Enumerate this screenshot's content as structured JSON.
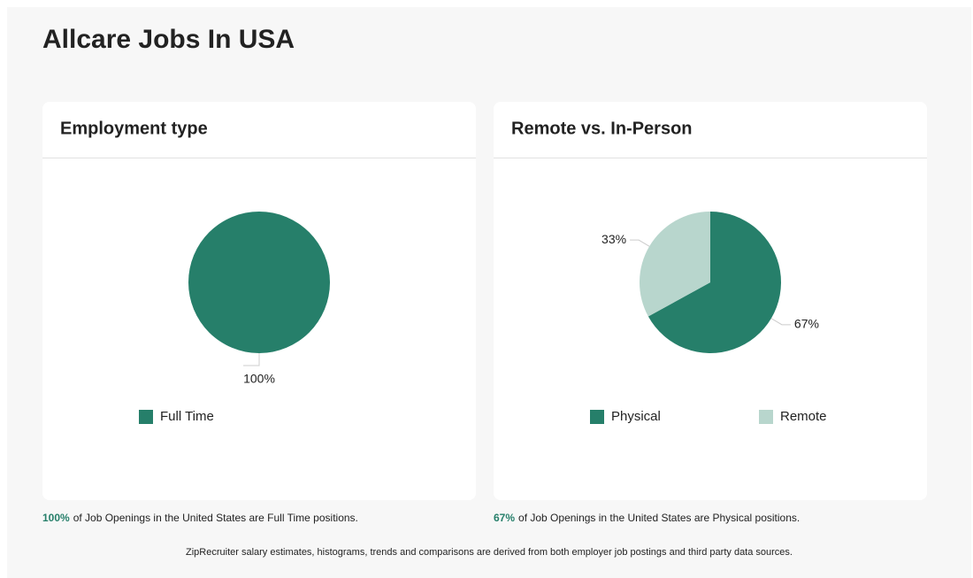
{
  "title": "Allcare Jobs In USA",
  "chart_data": [
    {
      "type": "pie",
      "title": "Employment type",
      "categories": [
        "Full Time"
      ],
      "values": [
        100
      ],
      "value_labels": [
        "100%"
      ],
      "colors": [
        "#267f6a"
      ]
    },
    {
      "type": "pie",
      "title": "Remote vs. In-Person",
      "categories": [
        "Physical",
        "Remote"
      ],
      "values": [
        67,
        33
      ],
      "value_labels": [
        "67%",
        "33%"
      ],
      "colors": [
        "#267f6a",
        "#b8d6cd"
      ]
    }
  ],
  "captions": [
    {
      "highlight": "100%",
      "text": "of Job Openings in the United States are Full Time positions."
    },
    {
      "highlight": "67%",
      "text": "of Job Openings in the United States are Physical positions."
    }
  ],
  "footer": "ZipRecruiter salary estimates, histograms, trends and comparisons are derived from both employer job postings and third party data sources."
}
